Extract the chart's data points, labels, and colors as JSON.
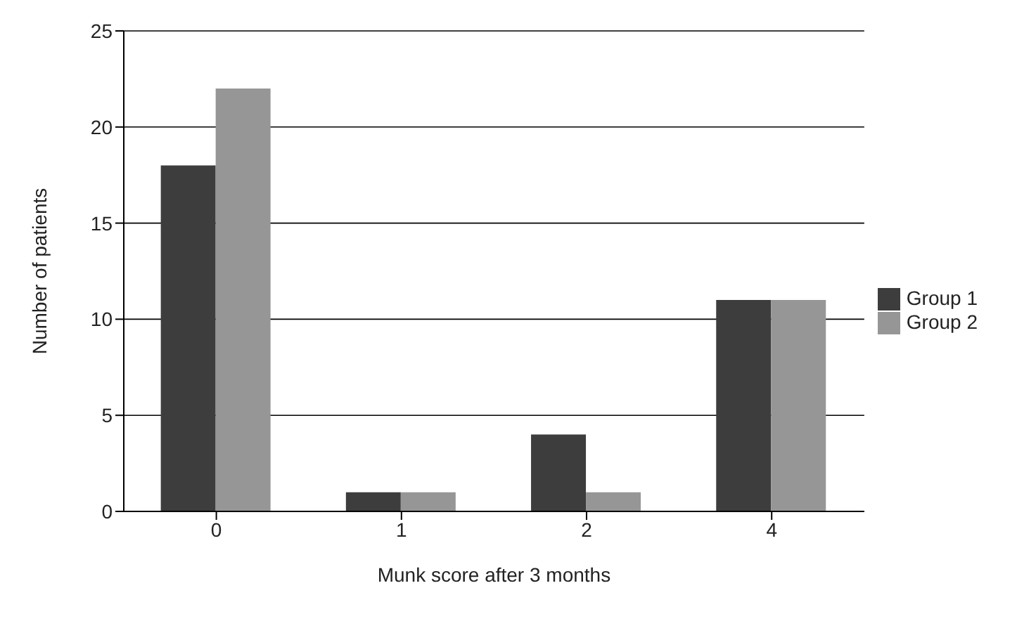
{
  "chart_data": {
    "type": "bar",
    "xlabel": "Munk score after 3 months",
    "ylabel": "Number of patients",
    "categories": [
      "0",
      "1",
      "2",
      "4"
    ],
    "series": [
      {
        "name": "Group 1",
        "color": "#3d3d3d",
        "values": [
          18,
          1,
          4,
          11
        ]
      },
      {
        "name": "Group 2",
        "color": "#969696",
        "values": [
          22,
          1,
          1,
          11
        ]
      }
    ],
    "ylim": [
      0,
      25
    ],
    "yticks": [
      0,
      5,
      10,
      15,
      20,
      25
    ],
    "grid": "y",
    "legend": "right"
  }
}
